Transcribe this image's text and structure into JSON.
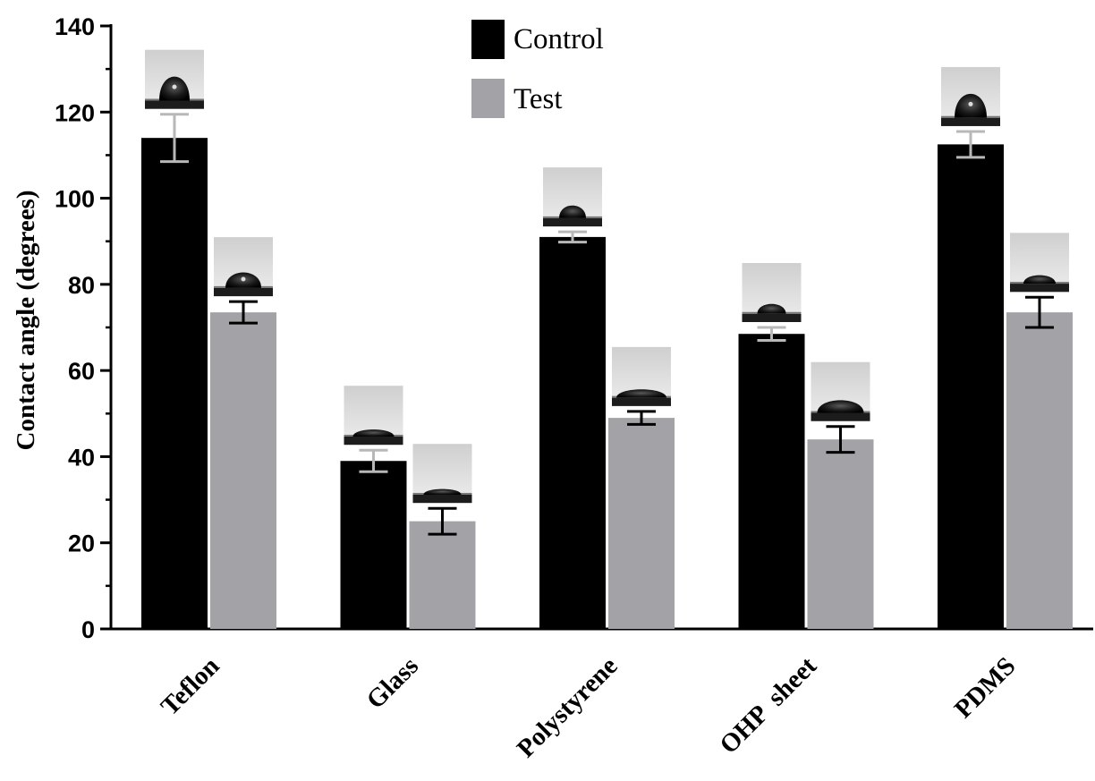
{
  "chart_data": {
    "type": "bar",
    "title": "",
    "xlabel": "",
    "ylabel": "Contact  angle (degrees)",
    "ylim": [
      0,
      140
    ],
    "yticks": [
      0,
      20,
      40,
      60,
      80,
      100,
      120,
      140
    ],
    "categories": [
      "Teflon",
      "Glass",
      "Polystyrene",
      "OHP  sheet",
      "PDMS"
    ],
    "series": [
      {
        "name": "Control",
        "color": "#000000",
        "values": [
          114,
          39,
          91,
          68.5,
          112.5
        ],
        "errors": [
          5.5,
          2.5,
          1.2,
          1.5,
          3
        ]
      },
      {
        "name": "Test",
        "color": "#a3a3a7",
        "values": [
          73.5,
          25,
          49,
          44,
          73.5
        ],
        "errors": [
          2.5,
          3,
          1.5,
          3,
          3.5
        ]
      }
    ],
    "grid": false,
    "legend": "top-center",
    "annotations": "droplet photograph inset above each bar"
  }
}
